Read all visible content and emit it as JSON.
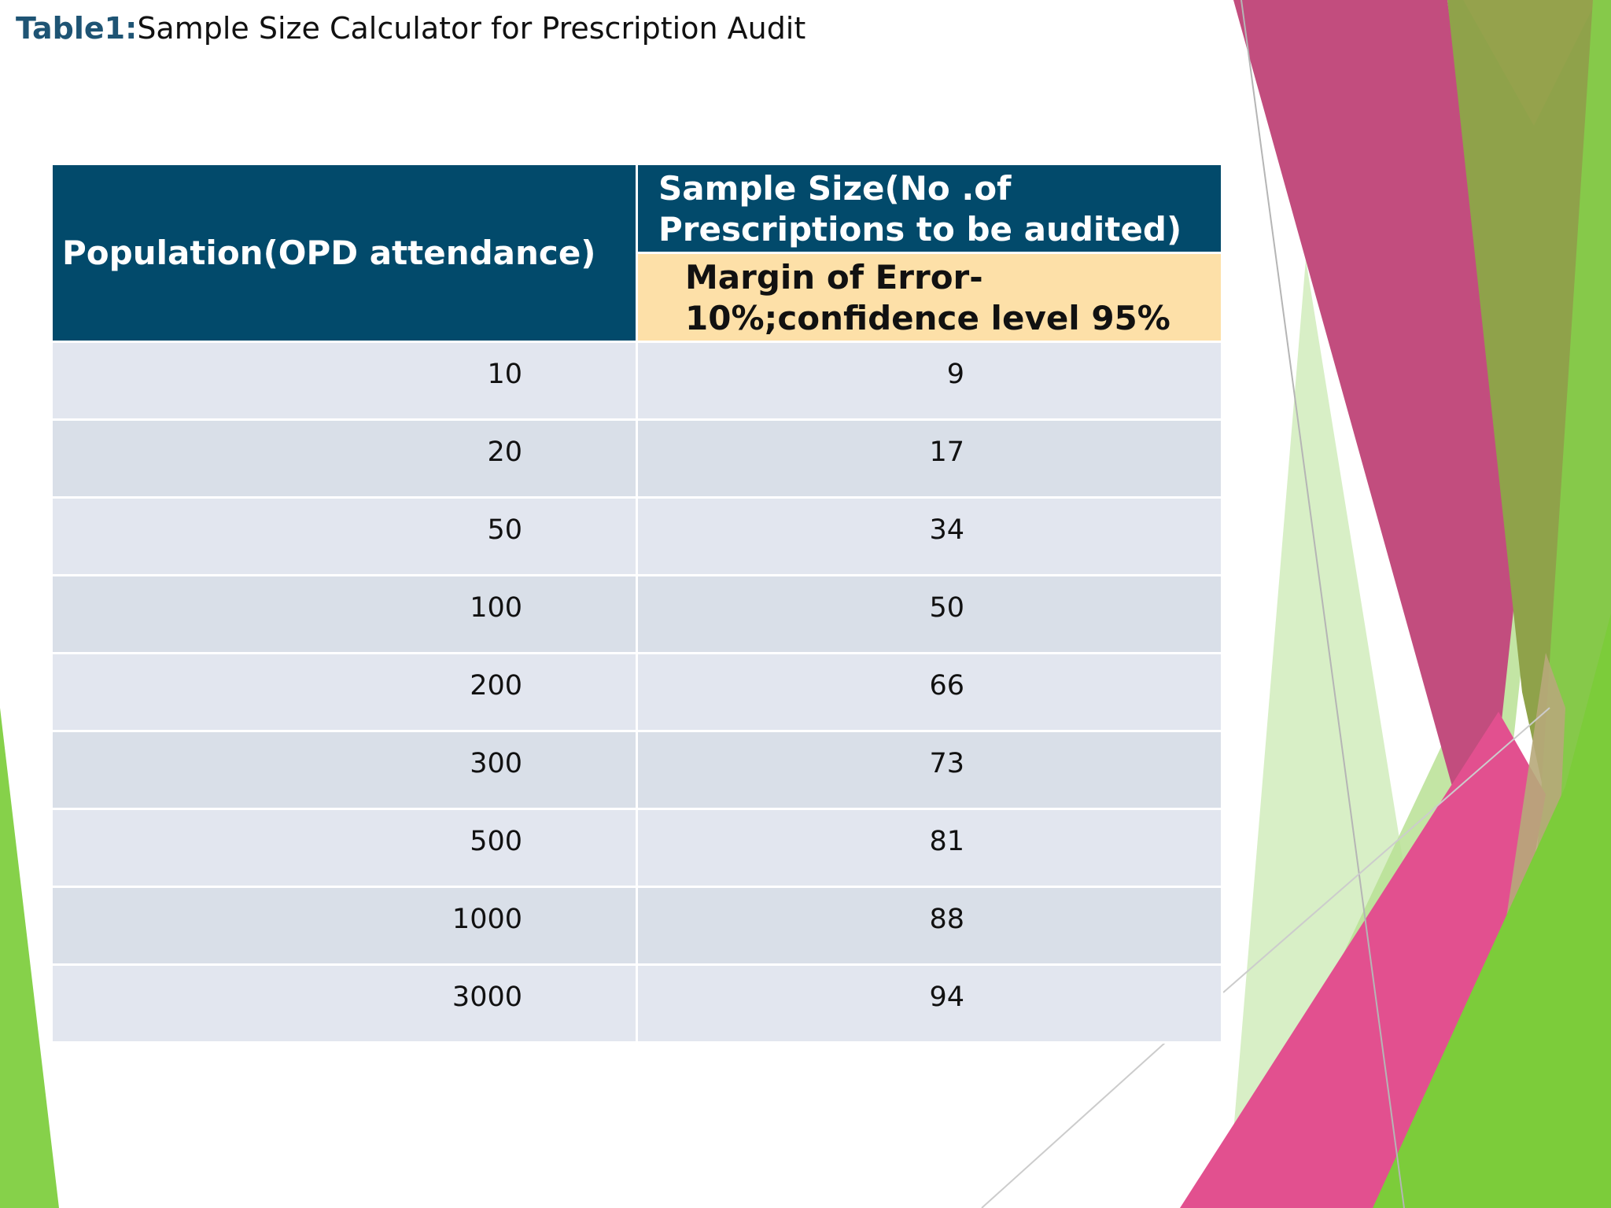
{
  "slide": {
    "title_prefix": "Table1:",
    "title": "Sample Size Calculator for Prescription Audit"
  },
  "table": {
    "header_population": "Population(OPD attendance)",
    "header_sample_size": "Sample Size(No .of Prescriptions to be audited)",
    "header_margin": "Margin of Error-10%;confidence level 95%",
    "rows": [
      {
        "population": "10",
        "sample_size": "9"
      },
      {
        "population": "20",
        "sample_size": "17"
      },
      {
        "population": "50",
        "sample_size": "34"
      },
      {
        "population": "100",
        "sample_size": "50"
      },
      {
        "population": "200",
        "sample_size": "66"
      },
      {
        "population": "300",
        "sample_size": "73"
      },
      {
        "population": "500",
        "sample_size": "81"
      },
      {
        "population": "1000",
        "sample_size": "88"
      },
      {
        "population": "3000",
        "sample_size": "94"
      }
    ]
  },
  "colors": {
    "header_bg": "#024a6b",
    "subheader_bg": "#fde0a8",
    "row_light": "#e2e6ef",
    "row_dark": "#d9dfe8",
    "accent_magenta": "#e0357f",
    "accent_green": "#7ccc3a",
    "accent_olive": "#8fa24a"
  }
}
